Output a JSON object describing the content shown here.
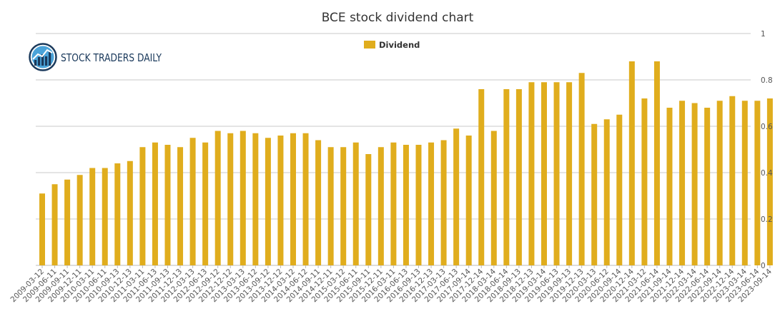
{
  "logo": {
    "text": "STOCK TRADERS DAILY"
  },
  "colors": {
    "bar": "#e0ad1d",
    "grid": "#c8c8c8",
    "axis": "#bbbbbb",
    "logo": "#1b3a5c",
    "logo_light": "#4aa3d9"
  },
  "chart_data": {
    "type": "bar",
    "title": "BCE stock dividend chart",
    "xlabel": "",
    "ylabel": "",
    "ylim": [
      0,
      1
    ],
    "yticks": [
      "0",
      "0.2",
      "0.4",
      "0.6",
      "0.8",
      "1"
    ],
    "legend": {
      "label": "Dividend",
      "placement": "top-center"
    },
    "grid": true,
    "categories": [
      "2009-03-12",
      "2009-06-11",
      "2009-09-11",
      "2009-12-11",
      "2010-03-11",
      "2010-06-11",
      "2010-09-13",
      "2010-12-13",
      "2011-03-11",
      "2011-06-13",
      "2011-09-13",
      "2011-12-13",
      "2012-03-13",
      "2012-06-13",
      "2012-09-12",
      "2012-12-12",
      "2013-03-13",
      "2013-06-12",
      "2013-09-12",
      "2013-12-12",
      "2014-03-12",
      "2014-06-12",
      "2014-09-11",
      "2014-12-11",
      "2015-03-12",
      "2015-06-11",
      "2015-09-11",
      "2015-12-11",
      "2016-03-11",
      "2016-06-13",
      "2016-09-13",
      "2016-12-13",
      "2017-03-13",
      "2017-06-13",
      "2017-09-14",
      "2017-12-14",
      "2018-03-14",
      "2018-06-14",
      "2018-09-13",
      "2018-12-13",
      "2019-03-14",
      "2019-06-13",
      "2019-09-13",
      "2019-12-13",
      "2020-03-13",
      "2020-06-12",
      "2020-09-14",
      "2020-12-14",
      "2021-03-12",
      "2021-06-14",
      "2021-09-14",
      "2021-12-14",
      "2022-03-14",
      "2022-06-14",
      "2022-09-14",
      "2022-12-14",
      "2023-03-14",
      "2023-06-14",
      "2023-09-14"
    ],
    "values": [
      0.31,
      0.35,
      0.37,
      0.39,
      0.42,
      0.42,
      0.44,
      0.45,
      0.51,
      0.53,
      0.52,
      0.51,
      0.55,
      0.53,
      0.58,
      0.57,
      0.58,
      0.57,
      0.55,
      0.56,
      0.57,
      0.57,
      0.54,
      0.51,
      0.51,
      0.53,
      0.48,
      0.51,
      0.53,
      0.52,
      0.52,
      0.53,
      0.54,
      0.59,
      0.56,
      0.76,
      0.58,
      0.76,
      0.76,
      0.79,
      0.79,
      0.79,
      0.79,
      0.83,
      0.61,
      0.63,
      0.65,
      0.88,
      0.72,
      0.88,
      0.68,
      0.71,
      0.7,
      0.68,
      0.71,
      0.73,
      0.71,
      0.71,
      0.72
    ]
  }
}
